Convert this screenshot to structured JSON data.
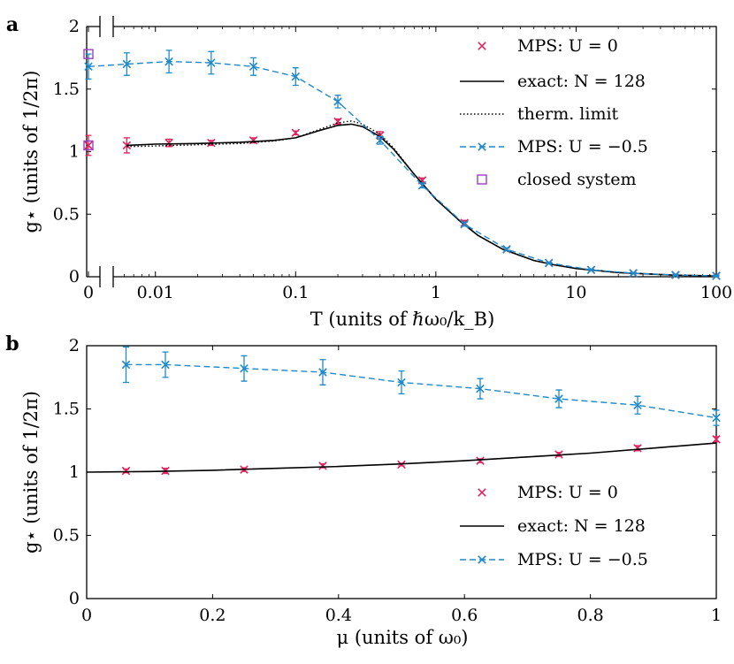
{
  "chart_data": [
    {
      "panel_label": "a",
      "type": "line",
      "xscale": "log with T=0 shown at left (broken axis)",
      "xlim": [
        0.005,
        100
      ],
      "ylim": [
        0,
        2
      ],
      "xlabel": "T (units of ℏω₀/k_B)",
      "ylabel": "g⋆ (units of 1/2π)",
      "x_ticks": [
        "0",
        "0.01",
        "0.1",
        "1",
        "10",
        "100"
      ],
      "y_ticks": [
        "0",
        "0.5",
        "1",
        "1.5",
        "2"
      ],
      "legend_position": "right",
      "series": [
        {
          "name": "MPS: U = 0",
          "color": "#e0245e",
          "marker": "x",
          "x": [
            0,
            0.00625,
            0.0125,
            0.025,
            0.05,
            0.1,
            0.2,
            0.4,
            0.8,
            1.6,
            3.2,
            6.4,
            12.8,
            25.6,
            51.2,
            100
          ],
          "y": [
            1.05,
            1.05,
            1.07,
            1.07,
            1.09,
            1.15,
            1.24,
            1.13,
            0.77,
            0.43,
            0.22,
            0.11,
            0.055,
            0.028,
            0.014,
            0.007
          ],
          "err": [
            0.08,
            0.06,
            0.03,
            0.02,
            0.02,
            0.015,
            0.02,
            0.03,
            0.02,
            0.02,
            0.01,
            0.005,
            0.005,
            0.005,
            0.005,
            0.005
          ]
        },
        {
          "name": "exact: N = 128",
          "color": "#000000",
          "style": "solid",
          "x": [
            0.00625,
            0.01,
            0.02,
            0.04,
            0.07,
            0.1,
            0.15,
            0.2,
            0.25,
            0.3,
            0.4,
            0.5,
            0.7,
            1,
            1.5,
            2,
            3,
            5,
            7,
            10,
            20,
            50,
            100
          ],
          "y": [
            1.05,
            1.06,
            1.065,
            1.075,
            1.09,
            1.11,
            1.17,
            1.21,
            1.22,
            1.2,
            1.12,
            1.02,
            0.82,
            0.62,
            0.44,
            0.33,
            0.22,
            0.13,
            0.095,
            0.066,
            0.033,
            0.013,
            0.007
          ]
        },
        {
          "name": "therm. limit",
          "color": "#000000",
          "style": "dotted",
          "x": [
            0.00625,
            0.01,
            0.02,
            0.04,
            0.07,
            0.1,
            0.15,
            0.2,
            0.25,
            0.3,
            0.4,
            0.5,
            0.7,
            1,
            1.5,
            2,
            3,
            5,
            7,
            10,
            20,
            50,
            100
          ],
          "y": [
            1.04,
            1.045,
            1.055,
            1.065,
            1.085,
            1.11,
            1.18,
            1.23,
            1.245,
            1.22,
            1.14,
            1.03,
            0.82,
            0.62,
            0.44,
            0.33,
            0.22,
            0.13,
            0.095,
            0.066,
            0.033,
            0.013,
            0.007
          ]
        },
        {
          "name": "MPS: U = −0.5",
          "color": "#1f8ac9",
          "style": "dashed",
          "marker": "x",
          "x": [
            0,
            0.00625,
            0.0125,
            0.025,
            0.05,
            0.1,
            0.2,
            0.4,
            0.8,
            1.6,
            3.2,
            6.4,
            12.8,
            25.6,
            51.2,
            100
          ],
          "y": [
            1.68,
            1.7,
            1.72,
            1.71,
            1.68,
            1.6,
            1.4,
            1.09,
            0.73,
            0.42,
            0.22,
            0.11,
            0.055,
            0.028,
            0.014,
            0.007
          ],
          "err": [
            0.1,
            0.09,
            0.09,
            0.09,
            0.07,
            0.07,
            0.05,
            0.03,
            0.02,
            0.015,
            0.01,
            0.005,
            0.005,
            0.005,
            0.005,
            0.005
          ]
        },
        {
          "name": "closed system",
          "color": "#9b3fc6",
          "marker": "square",
          "x": [
            0,
            0
          ],
          "y": [
            1.78,
            1.05
          ]
        }
      ]
    },
    {
      "panel_label": "b",
      "type": "line",
      "xlim": [
        0,
        1
      ],
      "ylim": [
        0,
        2
      ],
      "xlabel": "μ (units of ω₀)",
      "ylabel": "g⋆ (units of 1/2π)",
      "x_ticks": [
        "0",
        "0.2",
        "0.4",
        "0.6",
        "0.8",
        "1"
      ],
      "y_ticks": [
        "0",
        "0.5",
        "1",
        "1.5",
        "2"
      ],
      "legend_position": "bottom-right",
      "series": [
        {
          "name": "MPS: U = 0",
          "color": "#e0245e",
          "marker": "x",
          "x": [
            0.0625,
            0.125,
            0.25,
            0.375,
            0.5,
            0.625,
            0.75,
            0.875,
            1.0
          ],
          "y": [
            1.01,
            1.01,
            1.02,
            1.05,
            1.06,
            1.09,
            1.14,
            1.19,
            1.26
          ],
          "err": [
            0.015,
            0.02,
            0.015,
            0.015,
            0.01,
            0.015,
            0.015,
            0.02,
            0.02
          ]
        },
        {
          "name": "exact: N = 128",
          "color": "#000000",
          "style": "solid",
          "x": [
            0,
            0.1,
            0.2,
            0.3,
            0.4,
            0.5,
            0.6,
            0.7,
            0.8,
            0.9,
            1.0
          ],
          "y": [
            1.0,
            1.005,
            1.015,
            1.03,
            1.045,
            1.065,
            1.09,
            1.12,
            1.15,
            1.19,
            1.23
          ]
        },
        {
          "name": "MPS: U = −0.5",
          "color": "#1f8ac9",
          "style": "dashed",
          "marker": "x",
          "x": [
            0.0625,
            0.125,
            0.25,
            0.375,
            0.5,
            0.625,
            0.75,
            0.875,
            1.0
          ],
          "y": [
            1.85,
            1.85,
            1.82,
            1.79,
            1.71,
            1.66,
            1.58,
            1.53,
            1.43
          ],
          "err": [
            0.14,
            0.1,
            0.1,
            0.1,
            0.09,
            0.08,
            0.07,
            0.07,
            0.06
          ]
        }
      ]
    }
  ]
}
